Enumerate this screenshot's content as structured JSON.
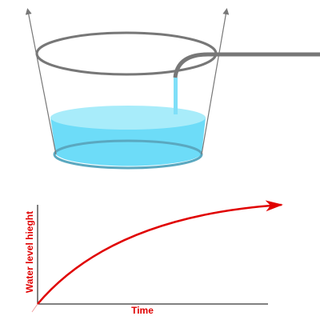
{
  "graph": {
    "y_axis_label": "Water level hieght",
    "x_axis_label": "Time"
  }
}
